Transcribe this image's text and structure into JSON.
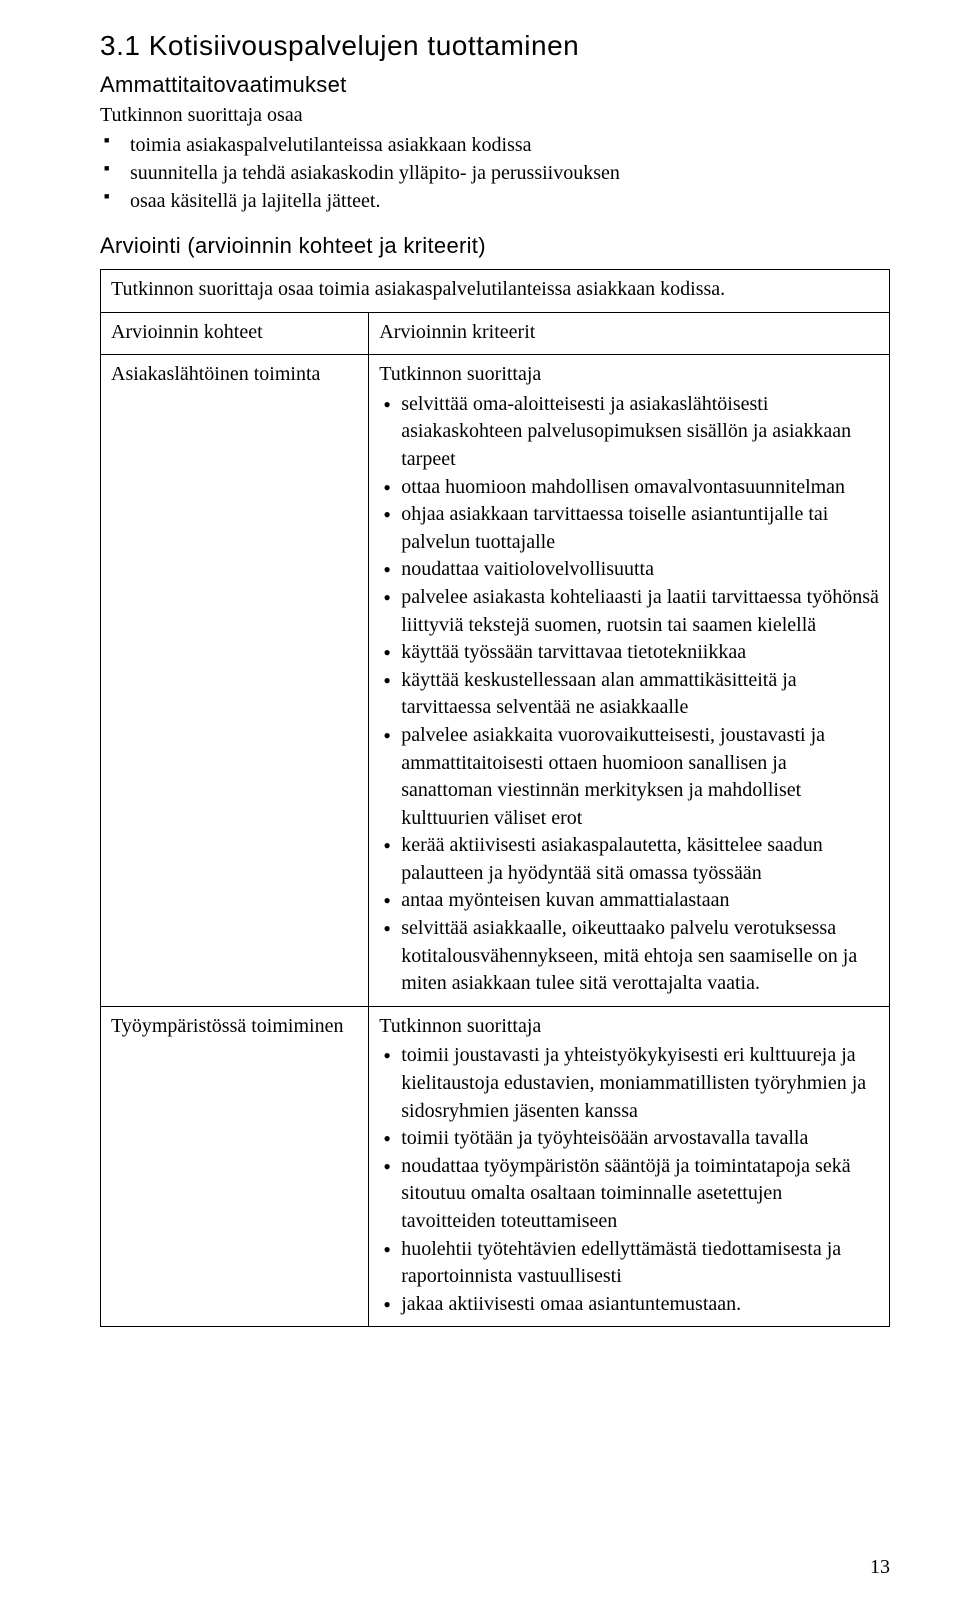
{
  "heading": "3.1  Kotisiivouspalvelujen tuottaminen",
  "subheading": "Ammattitaitovaatimukset",
  "intro_line": "Tutkinnon suorittaja osaa",
  "intro_items": [
    "toimia asiakaspalvelutilanteissa asiakkaan kodissa",
    "suunnitella ja tehdä asiakaskodin ylläpito- ja perussiivouksen",
    "osaa käsitellä ja lajitella jätteet."
  ],
  "assessment_heading": "Arviointi (arvioinnin kohteet ja kriteerit)",
  "table": {
    "span_row": "Tutkinnon suorittaja osaa toimia asiakaspalvelutilanteissa asiakkaan kodissa.",
    "header_left": "Arvioinnin kohteet",
    "header_right": "Arvioinnin kriteerit",
    "rows": [
      {
        "left": "Asiakaslähtöinen toiminta",
        "right_lead": "Tutkinnon suorittaja",
        "right_items": [
          "selvittää oma-aloitteisesti ja asiakaslähtöisesti asiakaskohteen palvelusopimuksen sisällön ja asiakkaan tarpeet",
          "ottaa huomioon mahdollisen omavalvontasuunnitelman",
          "ohjaa asiakkaan tarvittaessa toiselle asiantuntijalle tai palvelun tuottajalle",
          "noudattaa vaitiolovelvollisuutta",
          "palvelee asiakasta kohteliaasti ja laatii tarvittaessa työhönsä liittyviä tekstejä suomen, ruotsin tai saamen kielellä",
          "käyttää työssään tarvittavaa tietotekniikkaa",
          "käyttää keskustellessaan alan ammattikäsitteitä ja tarvittaessa selventää ne asiakkaalle",
          "palvelee asiakkaita vuorovaikutteisesti, joustavasti ja ammattitaitoisesti ottaen huomioon sanallisen ja sanattoman viestinnän merkityksen ja mahdolliset kulttuurien väliset erot",
          "kerää aktiivisesti asiakaspalautetta, käsittelee saadun palautteen ja hyödyntää sitä omassa työssään",
          "antaa myönteisen kuvan ammattialastaan",
          "selvittää asiakkaalle, oikeuttaako palvelu verotuksessa kotitalousvähennykseen, mitä ehtoja sen saamiselle on ja miten asiakkaan tulee sitä verottajalta vaatia."
        ]
      },
      {
        "left": "Työympäristössä toimiminen",
        "right_lead": "Tutkinnon suorittaja",
        "right_items": [
          "toimii joustavasti ja yhteistyökykyisesti eri kulttuureja ja kielitaustoja edustavien, moniammatillisten työryhmien ja sidosryhmien jäsenten kanssa",
          "toimii työtään ja työyhteisöään arvostavalla tavalla",
          "noudattaa työympäristön sääntöjä ja toimintatapoja sekä sitoutuu omalta osaltaan toiminnalle asetettujen tavoitteiden toteuttamiseen",
          "huolehtii työtehtävien edellyttämästä tiedottamisesta ja raportoinnista vastuullisesti",
          "jakaa aktiivisesti omaa asiantuntemustaan."
        ]
      }
    ]
  },
  "page_number": "13"
}
